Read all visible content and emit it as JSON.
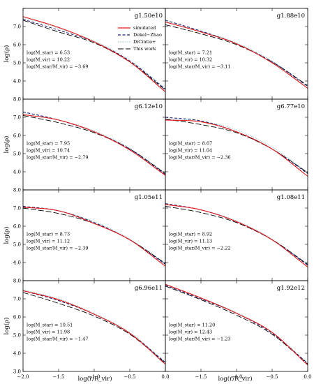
{
  "figure": {
    "xlabel": "log(r/R_vir)",
    "ylabel": "log(ρ)",
    "xlim": [
      -2.0,
      0.0
    ],
    "ylim": [
      3.0,
      8.0
    ],
    "x_ticks": [
      "−2.0",
      "−1.5",
      "−1.0",
      "−0.5",
      "0.0"
    ],
    "y_ticks": [
      "4.0",
      "5.0",
      "6.0",
      "7.0"
    ],
    "y_ticks_edge": [
      "3.0",
      "8.0"
    ],
    "legend": {
      "placement": "top-right of first-row right panel",
      "entries": [
        {
          "label": "simulated",
          "style": "solid",
          "color": "#e41a1c"
        },
        {
          "label": "Dekel−Zhao",
          "style": "dashed",
          "color": "#1a1a6e"
        },
        {
          "label": "DiCintio+",
          "style": "dotted",
          "color": "#7fbfbf"
        },
        {
          "label": "This work",
          "style": "longdash",
          "color": "#000000"
        }
      ]
    }
  },
  "chart_data": [
    {
      "type": "line",
      "title": "g1.50e10",
      "lines": [
        "log(M_star) = 6.53",
        "log(M_vir) = 10.22",
        "log(M_star/M_vir) = −3.69"
      ],
      "x": [
        -2.0,
        -1.5,
        -1.0,
        -0.5,
        0.0
      ],
      "series": [
        {
          "name": "simulated",
          "values": [
            7.55,
            6.95,
            6.15,
            5.05,
            3.4
          ]
        },
        {
          "name": "Dekel−Zhao",
          "values": [
            7.4,
            6.8,
            6.15,
            5.1,
            3.55
          ]
        },
        {
          "name": "DiCintio+",
          "values": [
            7.5,
            6.9,
            6.2,
            5.15,
            3.6
          ]
        },
        {
          "name": "This work",
          "values": [
            7.35,
            6.7,
            6.1,
            5.05,
            3.5
          ]
        }
      ]
    },
    {
      "type": "line",
      "title": "g1.88e10",
      "lines": [
        "log(M_star) = 7.21",
        "log(M_vir) = 10.32",
        "log(M_star/M_vir) = −3.11"
      ],
      "x": [
        -2.0,
        -1.5,
        -1.0,
        -0.5,
        0.0
      ],
      "series": [
        {
          "name": "simulated",
          "values": [
            7.25,
            6.7,
            6.05,
            5.0,
            3.6
          ]
        },
        {
          "name": "Dekel−Zhao",
          "values": [
            7.35,
            6.75,
            6.05,
            5.05,
            3.7
          ]
        },
        {
          "name": "DiCintio+",
          "values": [
            7.3,
            6.75,
            6.1,
            5.1,
            3.7
          ]
        },
        {
          "name": "This work",
          "values": [
            7.1,
            6.6,
            6.0,
            5.05,
            3.75
          ]
        }
      ]
    },
    {
      "type": "line",
      "title": "g6.12e10",
      "lines": [
        "log(M_star) = 7.95",
        "log(M_vir) = 10.74",
        "log(M_star/M_vir) = −2.79"
      ],
      "x": [
        -2.0,
        -1.5,
        -1.0,
        -0.5,
        0.0
      ],
      "series": [
        {
          "name": "simulated",
          "values": [
            7.15,
            6.85,
            6.2,
            5.2,
            3.8
          ]
        },
        {
          "name": "Dekel−Zhao",
          "values": [
            7.3,
            6.85,
            6.2,
            5.25,
            3.85
          ]
        },
        {
          "name": "DiCintio+",
          "values": [
            7.25,
            6.85,
            6.25,
            5.3,
            3.9
          ]
        },
        {
          "name": "This work",
          "values": [
            7.1,
            6.7,
            6.15,
            5.25,
            3.9
          ]
        }
      ]
    },
    {
      "type": "line",
      "title": "g6.77e10",
      "lines": [
        "log(M_star) = 8.67",
        "log(M_vir) = 11.04",
        "log(M_star/M_vir) = −2.36"
      ],
      "x": [
        -2.0,
        -1.5,
        -1.0,
        -0.5,
        0.0
      ],
      "series": [
        {
          "name": "simulated",
          "values": [
            6.85,
            6.75,
            6.2,
            5.25,
            3.75
          ]
        },
        {
          "name": "Dekel−Zhao",
          "values": [
            7.0,
            6.8,
            6.2,
            5.25,
            3.9
          ]
        },
        {
          "name": "DiCintio+",
          "values": [
            6.9,
            6.8,
            6.3,
            5.35,
            3.95
          ]
        },
        {
          "name": "This work",
          "values": [
            6.9,
            6.6,
            6.15,
            5.25,
            3.95
          ]
        }
      ]
    },
    {
      "type": "line",
      "title": "g1.05e11",
      "lines": [
        "log(M_star) = 8.73",
        "log(M_vir) = 11.12",
        "log(M_star/M_vir) = −2.39"
      ],
      "x": [
        -2.0,
        -1.5,
        -1.0,
        -0.5,
        0.0
      ],
      "series": [
        {
          "name": "simulated",
          "values": [
            7.05,
            6.85,
            6.15,
            5.25,
            3.8
          ]
        },
        {
          "name": "Dekel−Zhao",
          "values": [
            7.1,
            6.85,
            6.2,
            5.25,
            3.9
          ]
        },
        {
          "name": "DiCintio+",
          "values": [
            7.05,
            6.85,
            6.25,
            5.3,
            3.95
          ]
        },
        {
          "name": "This work",
          "values": [
            7.0,
            6.7,
            6.15,
            5.25,
            3.95
          ]
        }
      ]
    },
    {
      "type": "line",
      "title": "g1.08e11",
      "lines": [
        "log(M_star) = 8.92",
        "log(M_vir) = 11.13",
        "log(M_star/M_vir) = −2.22"
      ],
      "x": [
        -2.0,
        -1.5,
        -1.0,
        -0.5,
        0.0
      ],
      "series": [
        {
          "name": "simulated",
          "values": [
            7.2,
            6.9,
            6.25,
            5.25,
            3.75
          ]
        },
        {
          "name": "Dekel−Zhao",
          "values": [
            7.25,
            6.9,
            6.25,
            5.25,
            3.85
          ]
        },
        {
          "name": "DiCintio+",
          "values": [
            7.2,
            6.9,
            6.3,
            5.3,
            3.9
          ]
        },
        {
          "name": "This work",
          "values": [
            7.1,
            6.75,
            6.2,
            5.25,
            3.9
          ]
        }
      ]
    },
    {
      "type": "line",
      "title": "g6.96e11",
      "lines": [
        "log(M_star) = 10.51",
        "log(M_vir) = 11.98",
        "log(M_star/M_vir) = −1.47"
      ],
      "x": [
        -2.0,
        -1.5,
        -1.0,
        -0.5,
        0.0
      ],
      "series": [
        {
          "name": "simulated",
          "values": [
            7.45,
            6.95,
            6.15,
            5.1,
            3.4
          ]
        },
        {
          "name": "Dekel−Zhao",
          "values": [
            7.45,
            6.9,
            6.15,
            5.1,
            3.5
          ]
        },
        {
          "name": "DiCintio+",
          "values": [
            7.5,
            7.0,
            6.2,
            5.15,
            3.5
          ]
        },
        {
          "name": "This work",
          "values": [
            7.35,
            6.75,
            6.05,
            5.05,
            3.45
          ]
        }
      ]
    },
    {
      "type": "line",
      "title": "g1.92e12",
      "lines": [
        "log(M_star) = 11.20",
        "log(M_vir) = 12.43",
        "log(M_star/M_vir) = −1.23"
      ],
      "x": [
        -2.0,
        -1.5,
        -1.0,
        -0.5,
        0.0
      ],
      "series": [
        {
          "name": "simulated",
          "values": [
            7.8,
            7.05,
            6.2,
            5.15,
            3.35
          ]
        },
        {
          "name": "Dekel−Zhao",
          "values": [
            7.75,
            7.0,
            6.2,
            5.1,
            3.45
          ]
        },
        {
          "name": "DiCintio+",
          "values": [
            7.8,
            7.05,
            6.25,
            5.15,
            3.45
          ]
        },
        {
          "name": "This work",
          "values": [
            7.7,
            6.95,
            6.1,
            5.05,
            3.4
          ]
        }
      ]
    }
  ]
}
